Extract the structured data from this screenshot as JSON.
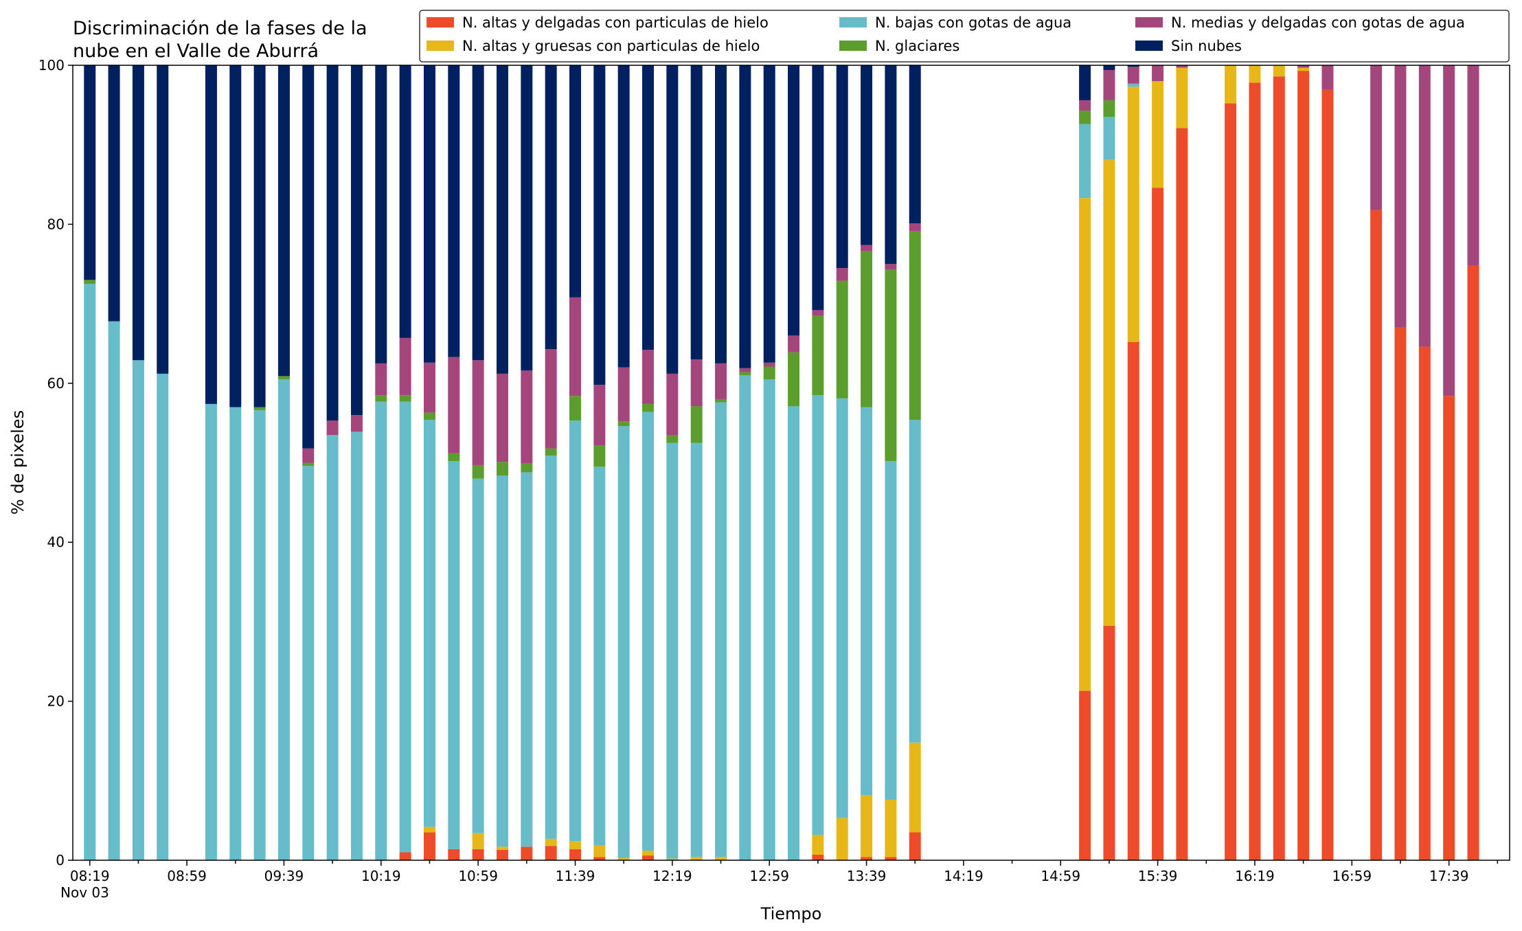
{
  "chart_data": {
    "type": "bar",
    "stacked": true,
    "title_lines": [
      "Discriminación de la fases de la",
      "nube en el Valle de Aburrá"
    ],
    "xlabel": "Tiempo",
    "ylabel": "% de pixeles",
    "ylim": [
      0,
      100
    ],
    "yticks": [
      0,
      20,
      40,
      60,
      80,
      100
    ],
    "x_date_label": "Nov 03",
    "xlim_minutes": [
      "08:12",
      "18:04"
    ],
    "major_tick_labels": [
      "08:19",
      "08:59",
      "09:39",
      "10:19",
      "10:59",
      "11:39",
      "12:19",
      "12:59",
      "13:39",
      "14:19",
      "14:59",
      "15:39",
      "16:19",
      "16:59",
      "17:39"
    ],
    "minor_tick_step_minutes": 20,
    "legend_position": "top-right",
    "legend_ncol": 3,
    "series": [
      {
        "name": "N. altas y delgadas con particulas de hielo",
        "color": "#ee4b2b"
      },
      {
        "name": "N. altas y gruesas con particulas de hielo",
        "color": "#e6b716"
      },
      {
        "name": "N. bajas con gotas de agua",
        "color": "#66bdc9"
      },
      {
        "name": "N. glaciares",
        "color": "#5b9e2e"
      },
      {
        "name": "N. medias y delgadas con gotas de agua",
        "color": "#a4457b"
      },
      {
        "name": "Sin nubes",
        "color": "#00205f"
      }
    ],
    "bars": [
      {
        "time": "08:19",
        "values": [
          0,
          0,
          72.5,
          0.5,
          0,
          27.0
        ]
      },
      {
        "time": "08:29",
        "values": [
          0,
          0,
          67.8,
          0,
          0,
          32.2
        ]
      },
      {
        "time": "08:39",
        "values": [
          0,
          0,
          62.9,
          0,
          0,
          37.1
        ]
      },
      {
        "time": "08:49",
        "values": [
          0,
          0,
          61.2,
          0,
          0,
          38.8
        ]
      },
      {
        "time": "09:09",
        "values": [
          0,
          0,
          57.4,
          0,
          0,
          42.6
        ]
      },
      {
        "time": "09:19",
        "values": [
          0,
          0,
          57.0,
          0,
          0,
          43.0
        ]
      },
      {
        "time": "09:29",
        "values": [
          0,
          0,
          56.6,
          0.4,
          0,
          43.0
        ]
      },
      {
        "time": "09:39",
        "values": [
          0,
          0,
          60.5,
          0.4,
          0,
          39.1
        ]
      },
      {
        "time": "09:49",
        "values": [
          0,
          0,
          49.6,
          0.4,
          1.8,
          48.2
        ]
      },
      {
        "time": "09:59",
        "values": [
          0,
          0,
          53.5,
          0,
          1.8,
          44.7
        ]
      },
      {
        "time": "10:09",
        "values": [
          0,
          0,
          53.9,
          0,
          2.1,
          44.0
        ]
      },
      {
        "time": "10:19",
        "values": [
          0,
          0,
          57.7,
          0.8,
          4.0,
          37.5
        ]
      },
      {
        "time": "10:29",
        "values": [
          1.0,
          0,
          56.7,
          0.8,
          7.2,
          34.3
        ]
      },
      {
        "time": "10:39",
        "values": [
          3.5,
          0.7,
          51.2,
          0.9,
          6.3,
          37.4
        ]
      },
      {
        "time": "10:49",
        "values": [
          1.4,
          0,
          48.8,
          1.0,
          12.1,
          36.7
        ]
      },
      {
        "time": "10:59",
        "values": [
          1.4,
          2.0,
          44.6,
          1.7,
          13.2,
          37.1
        ]
      },
      {
        "time": "11:09",
        "values": [
          1.3,
          0.4,
          46.7,
          1.7,
          11.1,
          38.8
        ]
      },
      {
        "time": "11:19",
        "values": [
          1.7,
          0,
          47.1,
          1.1,
          11.7,
          38.4
        ]
      },
      {
        "time": "11:29",
        "values": [
          1.8,
          0.9,
          48.2,
          0.9,
          12.5,
          35.7
        ]
      },
      {
        "time": "11:39",
        "values": [
          1.4,
          1.0,
          52.9,
          3.1,
          12.4,
          29.2
        ]
      },
      {
        "time": "11:49",
        "values": [
          0.4,
          1.5,
          47.6,
          2.7,
          7.6,
          40.2
        ]
      },
      {
        "time": "11:59",
        "values": [
          0,
          0.3,
          54.3,
          0.6,
          6.8,
          38.0
        ]
      },
      {
        "time": "12:09",
        "values": [
          0.6,
          0.6,
          55.2,
          1.0,
          6.8,
          35.8
        ]
      },
      {
        "time": "12:19",
        "values": [
          0,
          0.2,
          52.3,
          1.0,
          7.7,
          38.8
        ]
      },
      {
        "time": "12:29",
        "values": [
          0,
          0.4,
          52.1,
          4.6,
          5.9,
          37.0
        ]
      },
      {
        "time": "12:39",
        "values": [
          0,
          0.4,
          57.2,
          0.4,
          4.5,
          37.5
        ]
      },
      {
        "time": "12:49",
        "values": [
          0,
          0,
          61.0,
          0.4,
          0.5,
          38.1
        ]
      },
      {
        "time": "12:59",
        "values": [
          0,
          0,
          60.5,
          1.6,
          0.5,
          37.4
        ]
      },
      {
        "time": "13:09",
        "values": [
          0,
          0,
          57.1,
          6.8,
          2.1,
          34.0
        ]
      },
      {
        "time": "13:19",
        "values": [
          0.7,
          2.5,
          55.3,
          10.0,
          0.7,
          30.8
        ]
      },
      {
        "time": "13:29",
        "values": [
          0,
          5.3,
          52.8,
          14.8,
          1.6,
          25.5
        ]
      },
      {
        "time": "13:39",
        "values": [
          0.4,
          7.8,
          48.8,
          19.6,
          0.8,
          22.6
        ]
      },
      {
        "time": "13:49",
        "values": [
          0.4,
          7.2,
          42.6,
          24.1,
          0.7,
          25.0
        ]
      },
      {
        "time": "13:59",
        "values": [
          3.5,
          11.3,
          40.6,
          23.7,
          1.0,
          19.9
        ]
      },
      {
        "time": "15:09",
        "values": [
          21.3,
          62.0,
          9.3,
          1.7,
          1.3,
          4.4
        ]
      },
      {
        "time": "15:19",
        "values": [
          29.5,
          58.6,
          5.4,
          2.1,
          3.8,
          0.6
        ]
      },
      {
        "time": "15:29",
        "values": [
          65.2,
          32.1,
          0.4,
          0,
          2.1,
          0.2
        ]
      },
      {
        "time": "15:39",
        "values": [
          84.6,
          13.4,
          0,
          0,
          2.0,
          0
        ]
      },
      {
        "time": "15:49",
        "values": [
          92.1,
          7.6,
          0,
          0,
          0.3,
          0
        ]
      },
      {
        "time": "16:09",
        "values": [
          95.2,
          4.8,
          0,
          0,
          0,
          0
        ]
      },
      {
        "time": "16:19",
        "values": [
          97.8,
          2.2,
          0,
          0,
          0,
          0
        ]
      },
      {
        "time": "16:29",
        "values": [
          98.6,
          1.4,
          0,
          0,
          0,
          0
        ]
      },
      {
        "time": "16:39",
        "values": [
          99.3,
          0.4,
          0,
          0,
          0.3,
          0
        ]
      },
      {
        "time": "16:49",
        "values": [
          96.9,
          0,
          0,
          0,
          3.1,
          0
        ]
      },
      {
        "time": "17:09",
        "values": [
          81.8,
          0,
          0,
          0,
          18.2,
          0
        ]
      },
      {
        "time": "17:19",
        "values": [
          67.0,
          0,
          0,
          0,
          33.0,
          0
        ]
      },
      {
        "time": "17:29",
        "values": [
          64.6,
          0,
          0,
          0,
          35.4,
          0
        ]
      },
      {
        "time": "17:39",
        "values": [
          58.4,
          0,
          0,
          0,
          41.6,
          0
        ]
      },
      {
        "time": "17:49",
        "values": [
          74.8,
          0,
          0,
          0,
          25.2,
          0
        ]
      }
    ]
  }
}
